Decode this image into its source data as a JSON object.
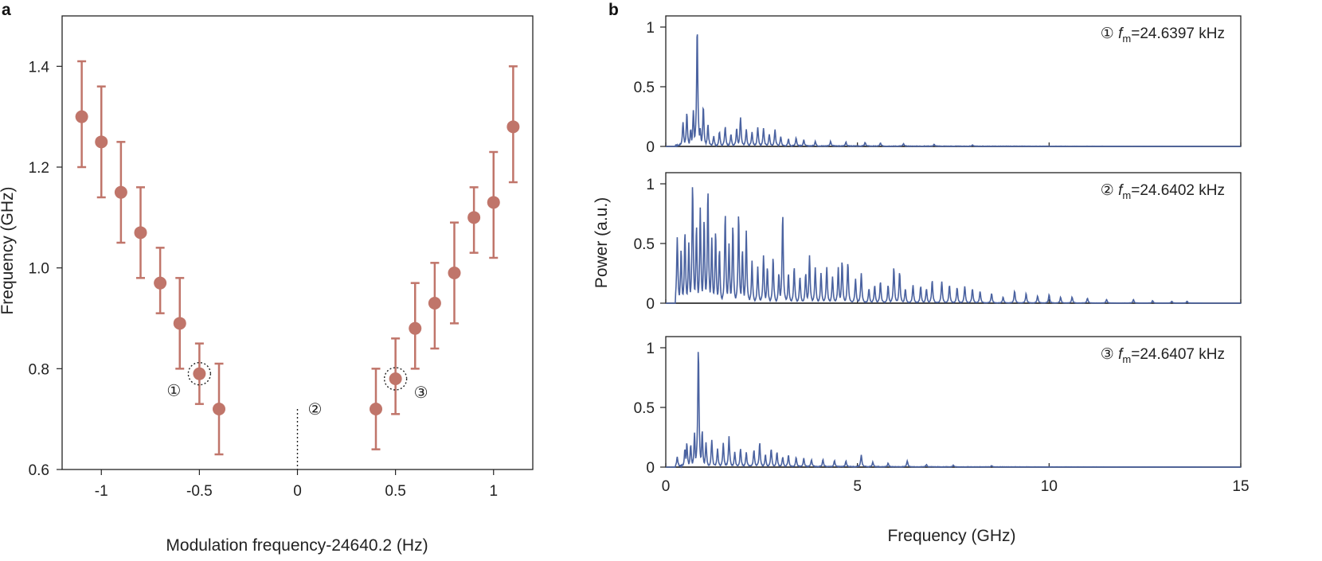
{
  "chart_data": [
    {
      "id": "a",
      "type": "scatter",
      "panel_label": "a",
      "xlabel": "Modulation frequency-24640.2 (Hz)",
      "ylabel": "Frequency (GHz)",
      "xlim": [
        -1.2,
        1.2
      ],
      "ylim": [
        0.6,
        1.5
      ],
      "xticks": [
        -1,
        -0.5,
        0,
        0.5,
        1
      ],
      "xtick_labels": [
        "-1",
        "-0.5",
        "0",
        "0.5",
        "1"
      ],
      "yticks": [
        0.6,
        0.8,
        1.0,
        1.2,
        1.4
      ],
      "ytick_labels": [
        "0.6",
        "0.8",
        "1.0",
        "1.2",
        "1.4"
      ],
      "marker_color": "#c0756a",
      "points": [
        {
          "x": -1.1,
          "y": 1.3,
          "lo": 1.2,
          "hi": 1.41
        },
        {
          "x": -1.0,
          "y": 1.25,
          "lo": 1.14,
          "hi": 1.36
        },
        {
          "x": -0.9,
          "y": 1.15,
          "lo": 1.05,
          "hi": 1.25
        },
        {
          "x": -0.8,
          "y": 1.07,
          "lo": 0.98,
          "hi": 1.16
        },
        {
          "x": -0.7,
          "y": 0.97,
          "lo": 0.91,
          "hi": 1.04
        },
        {
          "x": -0.6,
          "y": 0.89,
          "lo": 0.8,
          "hi": 0.98
        },
        {
          "x": -0.5,
          "y": 0.79,
          "lo": 0.73,
          "hi": 0.85
        },
        {
          "x": -0.4,
          "y": 0.72,
          "lo": 0.63,
          "hi": 0.81
        },
        {
          "x": 0.4,
          "y": 0.72,
          "lo": 0.64,
          "hi": 0.8
        },
        {
          "x": 0.5,
          "y": 0.78,
          "lo": 0.71,
          "hi": 0.86
        },
        {
          "x": 0.6,
          "y": 0.88,
          "lo": 0.8,
          "hi": 0.97
        },
        {
          "x": 0.7,
          "y": 0.93,
          "lo": 0.84,
          "hi": 1.01
        },
        {
          "x": 0.8,
          "y": 0.99,
          "lo": 0.89,
          "hi": 1.09
        },
        {
          "x": 0.9,
          "y": 1.1,
          "lo": 1.03,
          "hi": 1.16
        },
        {
          "x": 1.0,
          "y": 1.13,
          "lo": 1.02,
          "hi": 1.23
        },
        {
          "x": 1.1,
          "y": 1.28,
          "lo": 1.17,
          "hi": 1.4
        }
      ],
      "annotations": [
        {
          "label": "①",
          "x": -0.5,
          "y": 0.79,
          "circled_point": true
        },
        {
          "label": "②",
          "x": 0.0,
          "y": 0.72,
          "dotted_line": true
        },
        {
          "label": "③",
          "x": 0.5,
          "y": 0.78,
          "circled_point": true
        }
      ]
    },
    {
      "id": "b",
      "type": "line",
      "panel_label": "b",
      "xlabel": "Frequency (GHz)",
      "ylabel": "Power (a.u.)",
      "xlim": [
        0,
        15
      ],
      "xticks": [
        0,
        5,
        10,
        15
      ],
      "xtick_labels": [
        "0",
        "5",
        "10",
        "15"
      ],
      "ylim": [
        0,
        1.1
      ],
      "yticks": [
        0,
        0.5,
        1
      ],
      "ytick_labels": [
        "0",
        "0.5",
        "1"
      ],
      "line_color": "#4a62a0",
      "subplots": [
        {
          "marker": "①",
          "label_prefix": "f",
          "label_sub": "m",
          "label_value": "=24.6397 kHz",
          "peaks": [
            [
              0.45,
              0.2
            ],
            [
              0.55,
              0.28
            ],
            [
              0.65,
              0.14
            ],
            [
              0.72,
              0.3
            ],
            [
              0.82,
              1.0
            ],
            [
              0.9,
              0.15
            ],
            [
              0.98,
              0.33
            ],
            [
              1.1,
              0.18
            ],
            [
              1.25,
              0.08
            ],
            [
              1.4,
              0.12
            ],
            [
              1.55,
              0.16
            ],
            [
              1.7,
              0.1
            ],
            [
              1.85,
              0.15
            ],
            [
              1.95,
              0.24
            ],
            [
              2.1,
              0.14
            ],
            [
              2.25,
              0.12
            ],
            [
              2.4,
              0.16
            ],
            [
              2.55,
              0.15
            ],
            [
              2.7,
              0.1
            ],
            [
              2.85,
              0.14
            ],
            [
              3.0,
              0.08
            ],
            [
              3.2,
              0.06
            ],
            [
              3.4,
              0.07
            ],
            [
              3.6,
              0.05
            ],
            [
              3.9,
              0.04
            ],
            [
              4.3,
              0.04
            ],
            [
              4.7,
              0.035
            ],
            [
              5.2,
              0.03
            ],
            [
              5.6,
              0.025
            ],
            [
              6.2,
              0.02
            ],
            [
              7.0,
              0.015
            ],
            [
              8.0,
              0.01
            ]
          ]
        },
        {
          "marker": "②",
          "label_prefix": "f",
          "label_sub": "m",
          "label_value": "=24.6402 kHz",
          "peaks": [
            [
              0.2,
              0.35
            ],
            [
              0.3,
              0.55
            ],
            [
              0.4,
              0.45
            ],
            [
              0.5,
              0.6
            ],
            [
              0.6,
              0.5
            ],
            [
              0.7,
              1.0
            ],
            [
              0.8,
              0.65
            ],
            [
              0.9,
              0.8
            ],
            [
              1.0,
              0.7
            ],
            [
              1.1,
              0.95
            ],
            [
              1.2,
              0.55
            ],
            [
              1.3,
              0.6
            ],
            [
              1.4,
              0.45
            ],
            [
              1.55,
              0.75
            ],
            [
              1.65,
              0.5
            ],
            [
              1.75,
              0.65
            ],
            [
              1.9,
              0.75
            ],
            [
              2.0,
              0.45
            ],
            [
              2.1,
              0.6
            ],
            [
              2.25,
              0.35
            ],
            [
              2.4,
              0.3
            ],
            [
              2.55,
              0.4
            ],
            [
              2.65,
              0.3
            ],
            [
              2.8,
              0.38
            ],
            [
              2.95,
              0.25
            ],
            [
              3.05,
              0.75
            ],
            [
              3.2,
              0.25
            ],
            [
              3.35,
              0.3
            ],
            [
              3.5,
              0.22
            ],
            [
              3.65,
              0.25
            ],
            [
              3.75,
              0.4
            ],
            [
              3.9,
              0.3
            ],
            [
              4.05,
              0.25
            ],
            [
              4.2,
              0.3
            ],
            [
              4.35,
              0.22
            ],
            [
              4.5,
              0.3
            ],
            [
              4.6,
              0.35
            ],
            [
              4.75,
              0.34
            ],
            [
              4.95,
              0.2
            ],
            [
              5.1,
              0.25
            ],
            [
              5.3,
              0.12
            ],
            [
              5.45,
              0.15
            ],
            [
              5.6,
              0.18
            ],
            [
              5.8,
              0.15
            ],
            [
              5.95,
              0.3
            ],
            [
              6.1,
              0.26
            ],
            [
              6.25,
              0.12
            ],
            [
              6.45,
              0.15
            ],
            [
              6.65,
              0.14
            ],
            [
              6.8,
              0.12
            ],
            [
              6.95,
              0.19
            ],
            [
              7.2,
              0.18
            ],
            [
              7.4,
              0.15
            ],
            [
              7.6,
              0.13
            ],
            [
              7.8,
              0.14
            ],
            [
              8.0,
              0.12
            ],
            [
              8.2,
              0.1
            ],
            [
              8.5,
              0.08
            ],
            [
              8.8,
              0.05
            ],
            [
              9.1,
              0.1
            ],
            [
              9.4,
              0.08
            ],
            [
              9.7,
              0.06
            ],
            [
              10.0,
              0.07
            ],
            [
              10.3,
              0.05
            ],
            [
              10.6,
              0.05
            ],
            [
              11.0,
              0.04
            ],
            [
              11.5,
              0.03
            ],
            [
              12.2,
              0.03
            ],
            [
              12.7,
              0.02
            ],
            [
              13.2,
              0.015
            ],
            [
              13.6,
              0.015
            ]
          ]
        },
        {
          "marker": "③",
          "label_prefix": "f",
          "label_sub": "m",
          "label_value": "=24.6407 kHz",
          "peaks": [
            [
              0.3,
              0.08
            ],
            [
              0.5,
              0.15
            ],
            [
              0.55,
              0.2
            ],
            [
              0.65,
              0.18
            ],
            [
              0.75,
              0.28
            ],
            [
              0.85,
              1.0
            ],
            [
              0.95,
              0.3
            ],
            [
              1.05,
              0.2
            ],
            [
              1.2,
              0.22
            ],
            [
              1.35,
              0.15
            ],
            [
              1.5,
              0.2
            ],
            [
              1.65,
              0.25
            ],
            [
              1.8,
              0.12
            ],
            [
              1.95,
              0.15
            ],
            [
              2.1,
              0.12
            ],
            [
              2.3,
              0.14
            ],
            [
              2.45,
              0.2
            ],
            [
              2.6,
              0.1
            ],
            [
              2.75,
              0.15
            ],
            [
              2.9,
              0.12
            ],
            [
              3.05,
              0.08
            ],
            [
              3.2,
              0.1
            ],
            [
              3.4,
              0.08
            ],
            [
              3.6,
              0.07
            ],
            [
              3.8,
              0.06
            ],
            [
              4.1,
              0.06
            ],
            [
              4.4,
              0.05
            ],
            [
              4.7,
              0.05
            ],
            [
              5.1,
              0.1
            ],
            [
              5.4,
              0.04
            ],
            [
              5.8,
              0.03
            ],
            [
              6.3,
              0.05
            ],
            [
              6.8,
              0.02
            ],
            [
              7.5,
              0.015
            ],
            [
              8.5,
              0.01
            ]
          ]
        }
      ]
    }
  ]
}
